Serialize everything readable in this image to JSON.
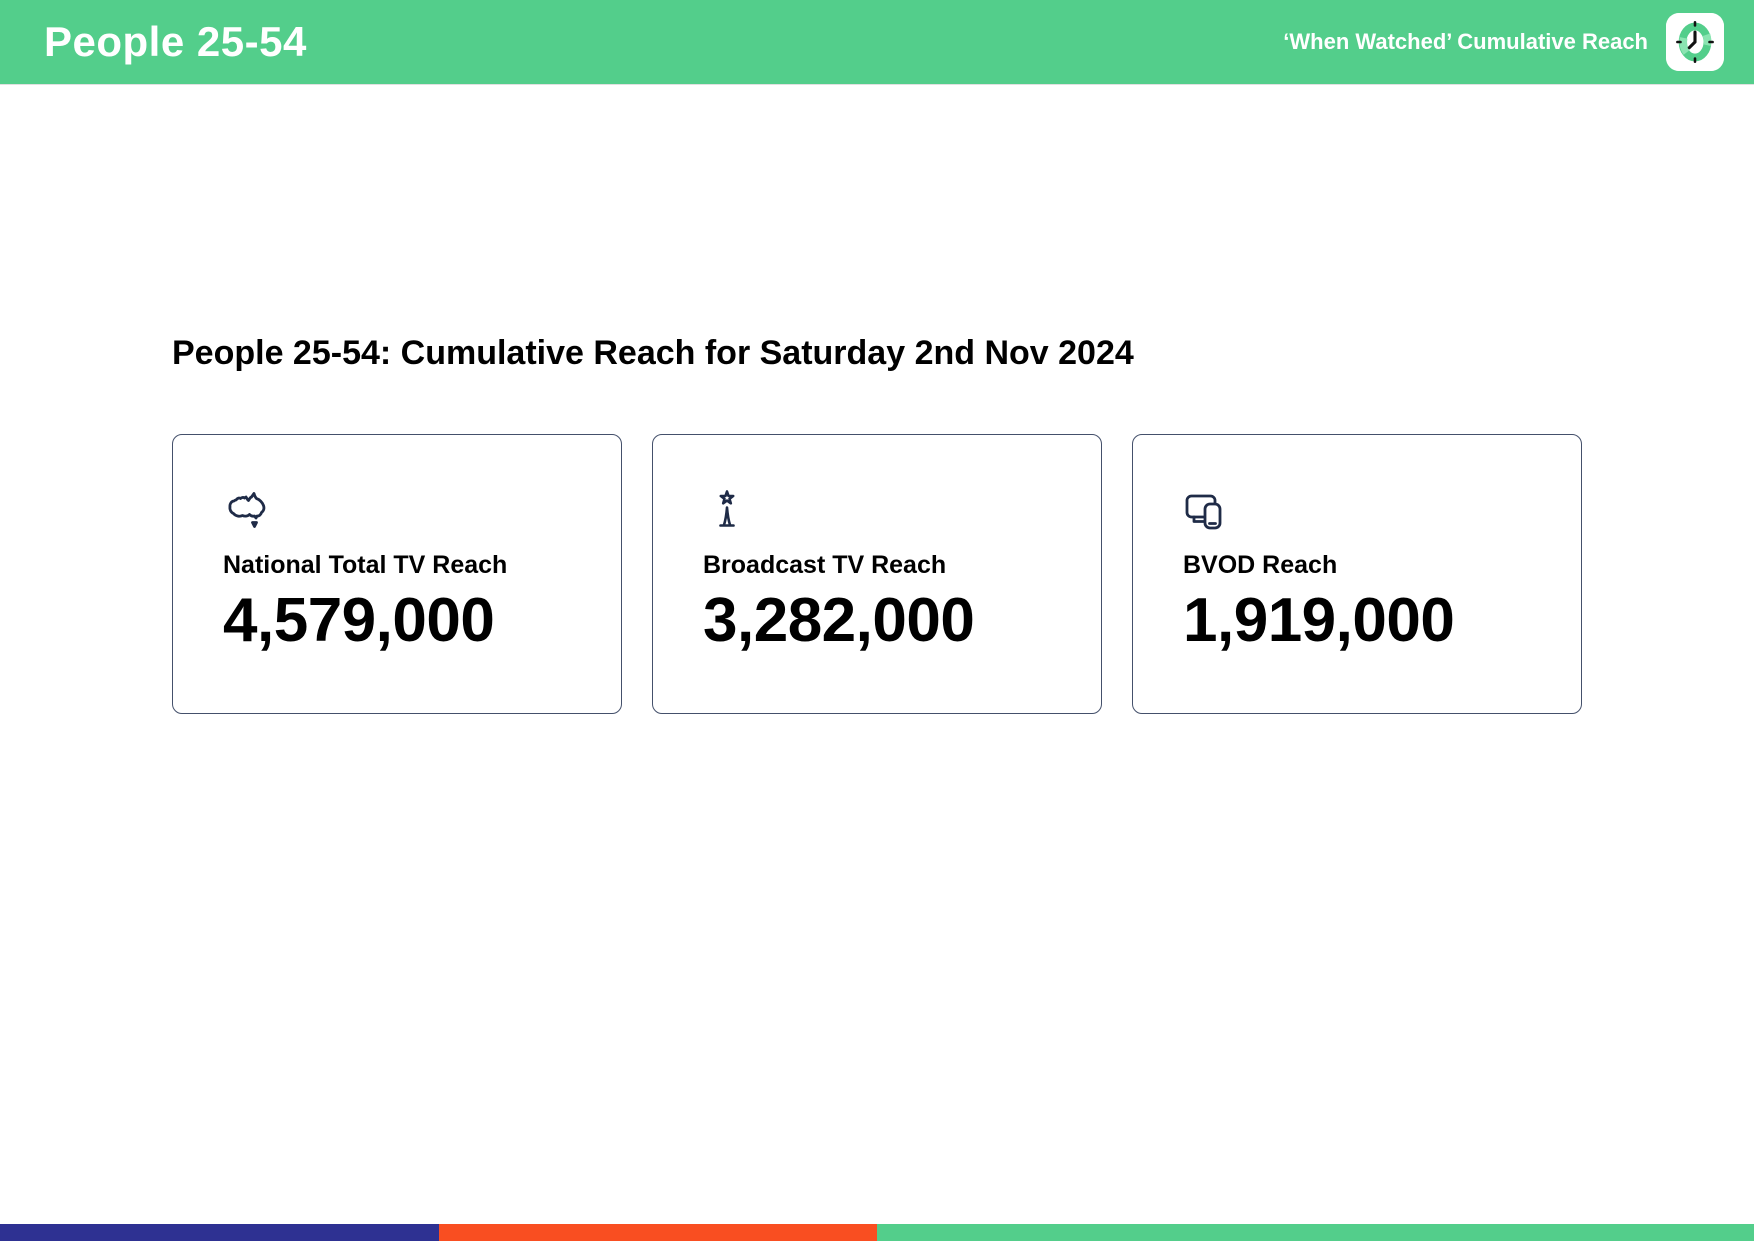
{
  "header": {
    "title": "People 25-54",
    "subtitle": "‘When Watched’ Cumulative Reach",
    "logo_icon": "clock-icon",
    "bg_color": "#53CE8B",
    "text_color": "#FFFFFF"
  },
  "main": {
    "heading": "People 25-54: Cumulative Reach for Saturday 2nd Nov 2024",
    "cards": [
      {
        "icon": "australia-map-icon",
        "label": "National Total TV Reach",
        "value": "4,579,000"
      },
      {
        "icon": "broadcast-tower-icon",
        "label": "Broadcast TV Reach",
        "value": "3,282,000"
      },
      {
        "icon": "devices-icon",
        "label": "BVOD Reach",
        "value": "1,919,000"
      }
    ],
    "icon_color": "#1F2B47",
    "card_border_color": "#44506B"
  },
  "footer": {
    "segments": [
      {
        "name": "blue",
        "color": "#2E3192",
        "width_pct": 25
      },
      {
        "name": "orange",
        "color": "#F94E21",
        "width_pct": 25
      },
      {
        "name": "green",
        "color": "#53CE8B",
        "width_pct": 50
      }
    ]
  }
}
